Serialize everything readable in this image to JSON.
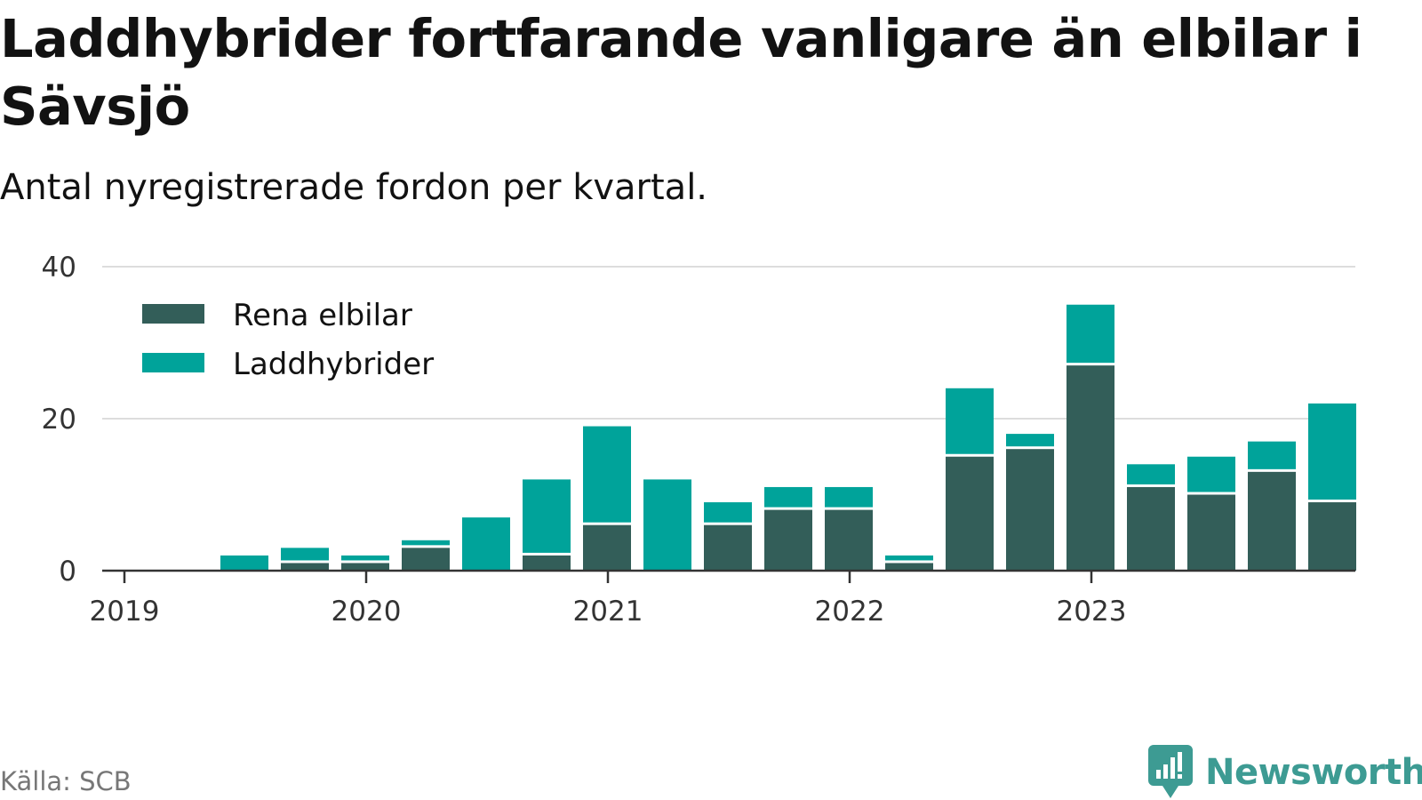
{
  "title": "Laddhybrider fortfarande vanligare än elbilar i Sävsjö",
  "subtitle": "Antal nyregistrerade fordon per kvartal.",
  "source": "Källa: SCB",
  "brand": "Newsworthy",
  "colors": {
    "elbilar": "#335e59",
    "laddhybrider": "#00a39a",
    "grid": "#dddddd",
    "axis": "#333333",
    "brand": "#3d9b93"
  },
  "chart_data": {
    "type": "bar",
    "stacked": true,
    "categories": [
      "2019 Q1",
      "2019 Q2",
      "2019 Q3",
      "2019 Q4",
      "2020 Q1",
      "2020 Q2",
      "2020 Q3",
      "2020 Q4",
      "2021 Q1",
      "2021 Q2",
      "2021 Q3",
      "2021 Q4",
      "2022 Q1",
      "2022 Q2",
      "2022 Q3",
      "2022 Q4",
      "2023 Q1",
      "2023 Q2",
      "2023 Q3",
      "2023 Q4"
    ],
    "series": [
      {
        "name": "Rena elbilar",
        "color": "#335e59",
        "values": [
          0,
          0,
          1,
          1,
          3,
          0,
          2,
          6,
          0,
          6,
          8,
          8,
          1,
          15,
          16,
          27,
          11,
          10,
          13,
          9
        ]
      },
      {
        "name": "Laddhybrider",
        "color": "#00a39a",
        "values": [
          0,
          2,
          2,
          1,
          1,
          7,
          10,
          13,
          12,
          3,
          3,
          3,
          1,
          9,
          2,
          8,
          3,
          5,
          4,
          13
        ]
      }
    ],
    "x_ticks": [
      "2019",
      "2020",
      "2021",
      "2022",
      "2023"
    ],
    "y_ticks": [
      0,
      20,
      40
    ],
    "ylim": [
      0,
      40
    ],
    "legend_position": "top-left",
    "grid": true
  }
}
